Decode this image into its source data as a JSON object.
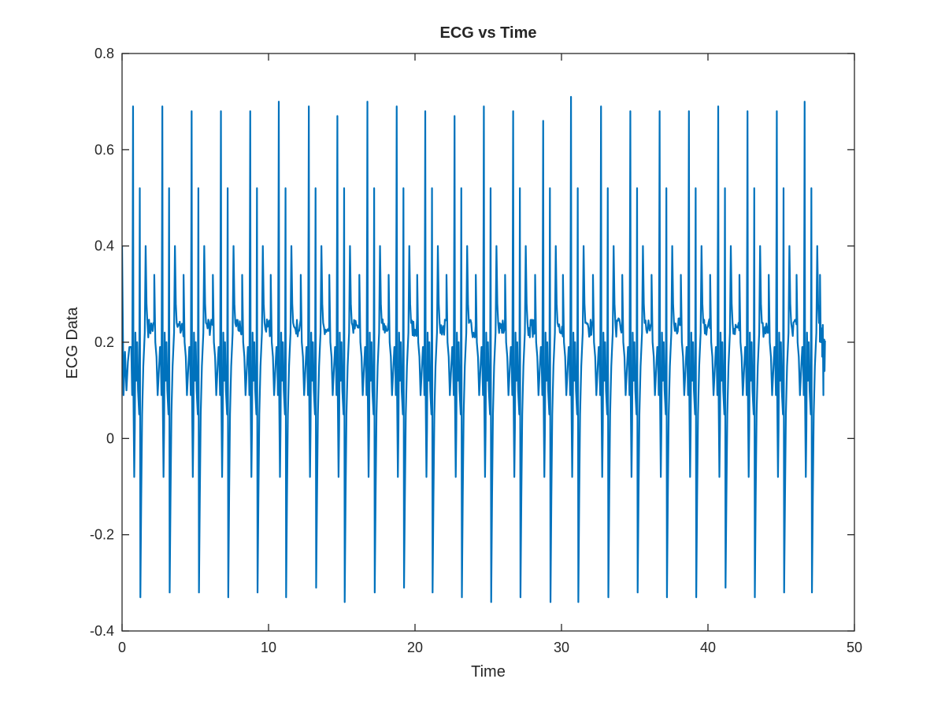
{
  "chart_data": {
    "type": "line",
    "title": "ECG vs Time",
    "xlabel": "Time",
    "ylabel": "ECG Data",
    "xlim": [
      0,
      50
    ],
    "ylim": [
      -0.4,
      0.8
    ],
    "xticks": [
      "0",
      "10",
      "20",
      "30",
      "40",
      "50"
    ],
    "yticks": [
      "-0.4",
      "-0.2",
      "0",
      "0.2",
      "0.4",
      "0.6",
      "0.8"
    ],
    "grid": false,
    "legend": "none",
    "line_color": "#0072BD",
    "x_start": 0,
    "x_end": 48,
    "beats": [
      {
        "r_time": 0.75,
        "r_peak": 0.69,
        "s_trough": -0.33
      },
      {
        "r_time": 2.75,
        "r_peak": 0.69,
        "s_trough": -0.32
      },
      {
        "r_time": 4.75,
        "r_peak": 0.68,
        "s_trough": -0.32
      },
      {
        "r_time": 6.75,
        "r_peak": 0.68,
        "s_trough": -0.33
      },
      {
        "r_time": 8.75,
        "r_peak": 0.68,
        "s_trough": -0.32
      },
      {
        "r_time": 10.7,
        "r_peak": 0.7,
        "s_trough": -0.33
      },
      {
        "r_time": 12.75,
        "r_peak": 0.69,
        "s_trough": -0.31
      },
      {
        "r_time": 14.7,
        "r_peak": 0.67,
        "s_trough": -0.34
      },
      {
        "r_time": 16.75,
        "r_peak": 0.7,
        "s_trough": -0.32
      },
      {
        "r_time": 18.75,
        "r_peak": 0.69,
        "s_trough": -0.31
      },
      {
        "r_time": 20.7,
        "r_peak": 0.68,
        "s_trough": -0.32
      },
      {
        "r_time": 22.7,
        "r_peak": 0.67,
        "s_trough": -0.33
      },
      {
        "r_time": 24.7,
        "r_peak": 0.69,
        "s_trough": -0.34
      },
      {
        "r_time": 26.7,
        "r_peak": 0.68,
        "s_trough": -0.33
      },
      {
        "r_time": 28.75,
        "r_peak": 0.66,
        "s_trough": -0.34
      },
      {
        "r_time": 30.65,
        "r_peak": 0.71,
        "s_trough": -0.34
      },
      {
        "r_time": 32.7,
        "r_peak": 0.69,
        "s_trough": -0.33
      },
      {
        "r_time": 34.7,
        "r_peak": 0.68,
        "s_trough": -0.32
      },
      {
        "r_time": 36.7,
        "r_peak": 0.68,
        "s_trough": -0.33
      },
      {
        "r_time": 38.7,
        "r_peak": 0.68,
        "s_trough": -0.33
      },
      {
        "r_time": 40.7,
        "r_peak": 0.69,
        "s_trough": -0.31
      },
      {
        "r_time": 42.7,
        "r_peak": 0.68,
        "s_trough": -0.33
      },
      {
        "r_time": 44.7,
        "r_peak": 0.68,
        "s_trough": -0.32
      },
      {
        "r_time": 46.6,
        "r_peak": 0.7,
        "s_trough": -0.32
      }
    ],
    "baseline": 0.21
  }
}
